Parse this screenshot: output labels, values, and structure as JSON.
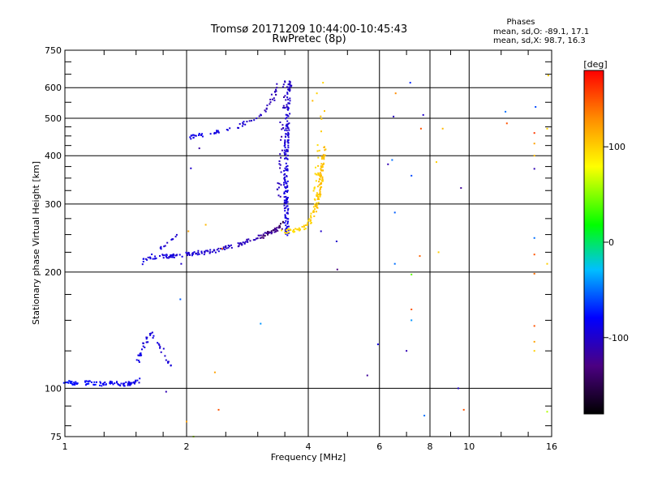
{
  "chart_data": {
    "type": "scatter",
    "title": "Tromsø 20171209 10:44:00-10:45:43",
    "subtitle": "RwPretec (8p)",
    "xlabel": "Frequency [MHz]",
    "ylabel": "Stationary phase Virtual Height [km]",
    "x_scale": "log",
    "y_scale": "log",
    "xlim": [
      1,
      16
    ],
    "ylim": [
      75,
      750
    ],
    "x_ticks": [
      1,
      2,
      4,
      6,
      8,
      10,
      16
    ],
    "x_tick_labels": [
      "1",
      "2",
      "4",
      "6",
      "8",
      "10",
      "16"
    ],
    "y_ticks": [
      75,
      100,
      200,
      300,
      400,
      500,
      600,
      750
    ],
    "y_tick_labels": [
      "75",
      "100",
      "200",
      "300",
      "400",
      "500",
      "600",
      "750"
    ],
    "x_minor_ticks": [
      1.25,
      1.5,
      1.75,
      2.5,
      3,
      3.5,
      5,
      7,
      9,
      12,
      14
    ],
    "y_minor_ticks": [
      80,
      90,
      125,
      150,
      175,
      225,
      250,
      275,
      325,
      350,
      375,
      425,
      450,
      475,
      550,
      650,
      700
    ],
    "grid": true,
    "legend": {
      "heading": "Phases",
      "lines": [
        "mean, sd,O: -89.1, 17.1",
        "mean, sd,X:  98.7, 16.3"
      ]
    },
    "colorbar": {
      "label": "[deg]",
      "range": [
        -180,
        180
      ],
      "ticks": [
        100,
        0,
        -100
      ],
      "tick_labels": [
        "100",
        "0",
        "-100"
      ],
      "colormap": [
        "#000000",
        "#4b0082",
        "#0000ff",
        "#00bfff",
        "#00ff00",
        "#ffff00",
        "#ff8c00",
        "#ff0000"
      ]
    },
    "series": [
      {
        "traces": [
          {
            "x": [
              1.0,
              1.08,
              1.16,
              1.24,
              1.32,
              1.4,
              1.46,
              1.5,
              1.52
            ],
            "y": [
              104,
              103,
              103.5,
              102.5,
              103,
              102.5,
              103,
              104,
              105
            ],
            "phase": [
              -75,
              -80,
              -78,
              -82,
              -84,
              -86,
              -88,
              -90,
              -90
            ],
            "n": 95
          },
          {
            "x": [
              1.52,
              1.58,
              1.64,
              1.7,
              1.76,
              1.83
            ],
            "y": [
              118,
              132,
              140,
              132,
              122,
              115
            ],
            "phase": [
              -92,
              -95,
              -92,
              -95,
              -97,
              -95
            ],
            "n": 42
          },
          {
            "x": [
              1.52,
              1.65,
              1.8,
              2.0,
              2.3,
              2.6,
              2.9,
              3.2,
              3.45
            ],
            "y": [
              214,
              218,
              220,
              222,
              226,
              233,
              242,
              252,
              262
            ],
            "phase": [
              -90,
              -92,
              -94,
              -96,
              -100,
              -104,
              -110,
              -118,
              -128
            ],
            "n": 150
          },
          {
            "x": [
              1.52,
              1.6,
              1.7,
              1.8,
              1.9
            ],
            "y": [
              205,
              215,
              228,
              240,
              250
            ],
            "phase": [
              -95,
              -96,
              -97,
              -98,
              -99
            ],
            "n": 18
          },
          {
            "x": [
              2.0,
              2.25,
              2.5,
              2.8,
              3.05,
              3.25,
              3.4
            ],
            "y": [
              445,
              455,
              466,
              485,
              505,
              555,
              620
            ],
            "phase": [
              -88,
              -90,
              -93,
              -98,
              -103,
              -108,
              -112
            ],
            "n": 65
          },
          {
            "x": [
              3.55,
              3.53,
              3.52,
              3.53,
              3.55,
              3.58,
              3.6
            ],
            "y": [
              250,
              290,
              340,
              420,
              490,
              570,
              630
            ],
            "phase": [
              -90,
              -92,
              -95,
              -96,
              -98,
              -100,
              -100
            ],
            "n": 190
          },
          {
            "x": [
              3.38,
              3.42,
              3.46,
              3.52
            ],
            "y": [
              305,
              410,
              520,
              630
            ],
            "phase": [
              -105,
              -108,
              -110,
              -110
            ],
            "n": 35
          },
          {
            "x": [
              3.45,
              3.7,
              3.95,
              4.15,
              4.25,
              4.32,
              4.38
            ],
            "y": [
              255,
              256,
              262,
              285,
              320,
              360,
              420
            ],
            "phase": [
              96,
              98,
              100,
              102,
              104,
              106,
              108
            ],
            "n": 130
          },
          {
            "x": [
              4.15,
              4.22,
              4.28,
              4.35
            ],
            "y": [
              300,
              380,
              450,
              520
            ],
            "phase": [
              95,
              98,
              100,
              102
            ],
            "n": 22
          },
          {
            "x": [
              3.05,
              3.2,
              3.35,
              3.45
            ],
            "y": [
              245,
              252,
              262,
              270
            ],
            "phase": [
              -135,
              -140,
              -145,
              -148
            ],
            "n": 15
          }
        ],
        "points": [
          {
            "x": 1.78,
            "y": 98,
            "phase": -110
          },
          {
            "x": 1.93,
            "y": 170,
            "phase": -55
          },
          {
            "x": 1.94,
            "y": 210,
            "phase": -100
          },
          {
            "x": 2.0,
            "y": 82,
            "phase": 120
          },
          {
            "x": 2.02,
            "y": 255,
            "phase": 120
          },
          {
            "x": 2.05,
            "y": 371,
            "phase": -100
          },
          {
            "x": 2.08,
            "y": 75,
            "phase": 60
          },
          {
            "x": 2.15,
            "y": 418,
            "phase": -115
          },
          {
            "x": 2.23,
            "y": 265,
            "phase": 110
          },
          {
            "x": 2.35,
            "y": 110,
            "phase": 120
          },
          {
            "x": 2.4,
            "y": 88,
            "phase": 150
          },
          {
            "x": 2.45,
            "y": 230,
            "phase": 140
          },
          {
            "x": 3.05,
            "y": 147,
            "phase": -40
          },
          {
            "x": 4.3,
            "y": 255,
            "phase": -100
          },
          {
            "x": 4.7,
            "y": 240,
            "phase": -100
          },
          {
            "x": 4.72,
            "y": 203,
            "phase": -130
          },
          {
            "x": 4.1,
            "y": 555,
            "phase": 110
          },
          {
            "x": 4.2,
            "y": 580,
            "phase": 100
          },
          {
            "x": 4.35,
            "y": 618,
            "phase": 98
          },
          {
            "x": 5.6,
            "y": 108,
            "phase": -120
          },
          {
            "x": 5.95,
            "y": 130,
            "phase": -90
          },
          {
            "x": 6.3,
            "y": 380,
            "phase": -110
          },
          {
            "x": 6.45,
            "y": 390,
            "phase": -50
          },
          {
            "x": 6.5,
            "y": 505,
            "phase": -105
          },
          {
            "x": 6.55,
            "y": 285,
            "phase": -55
          },
          {
            "x": 6.55,
            "y": 210,
            "phase": -50
          },
          {
            "x": 6.58,
            "y": 580,
            "phase": 130
          },
          {
            "x": 7.0,
            "y": 125,
            "phase": -110
          },
          {
            "x": 7.15,
            "y": 618,
            "phase": -70
          },
          {
            "x": 7.2,
            "y": 160,
            "phase": 150
          },
          {
            "x": 7.2,
            "y": 197,
            "phase": 40
          },
          {
            "x": 7.2,
            "y": 150,
            "phase": -40
          },
          {
            "x": 7.2,
            "y": 355,
            "phase": -60
          },
          {
            "x": 7.55,
            "y": 220,
            "phase": 145
          },
          {
            "x": 7.6,
            "y": 470,
            "phase": 150
          },
          {
            "x": 7.7,
            "y": 510,
            "phase": -100
          },
          {
            "x": 7.75,
            "y": 85,
            "phase": -50
          },
          {
            "x": 8.3,
            "y": 385,
            "phase": 100
          },
          {
            "x": 8.4,
            "y": 225,
            "phase": 100
          },
          {
            "x": 8.6,
            "y": 470,
            "phase": 110
          },
          {
            "x": 9.4,
            "y": 100,
            "phase": -100
          },
          {
            "x": 9.55,
            "y": 330,
            "phase": -120
          },
          {
            "x": 9.7,
            "y": 88,
            "phase": 150
          },
          {
            "x": 12.3,
            "y": 520,
            "phase": -50
          },
          {
            "x": 12.4,
            "y": 485,
            "phase": 150
          },
          {
            "x": 14.5,
            "y": 458,
            "phase": 160
          },
          {
            "x": 14.5,
            "y": 430,
            "phase": 120
          },
          {
            "x": 14.5,
            "y": 400,
            "phase": 110
          },
          {
            "x": 14.5,
            "y": 370,
            "phase": -110
          },
          {
            "x": 14.5,
            "y": 245,
            "phase": -50
          },
          {
            "x": 14.5,
            "y": 222,
            "phase": 150
          },
          {
            "x": 14.5,
            "y": 198,
            "phase": 140
          },
          {
            "x": 14.5,
            "y": 145,
            "phase": 150
          },
          {
            "x": 14.5,
            "y": 132,
            "phase": 120
          },
          {
            "x": 14.5,
            "y": 125,
            "phase": 100
          },
          {
            "x": 14.6,
            "y": 535,
            "phase": -60
          },
          {
            "x": 15.7,
            "y": 645,
            "phase": 100
          },
          {
            "x": 15.6,
            "y": 470,
            "phase": 100
          },
          {
            "x": 15.6,
            "y": 210,
            "phase": 100
          },
          {
            "x": 15.6,
            "y": 87,
            "phase": 60
          }
        ]
      }
    ]
  }
}
